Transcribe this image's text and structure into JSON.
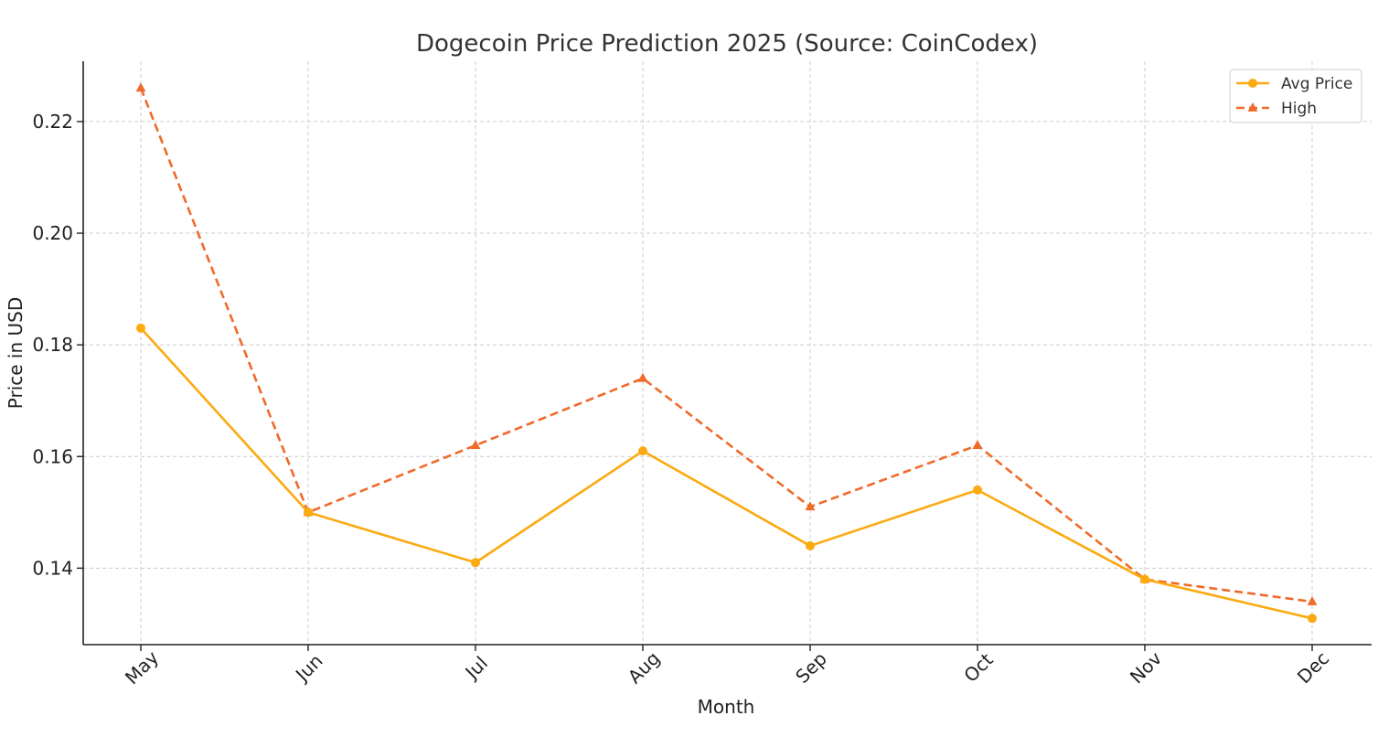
{
  "chart_data": {
    "type": "line",
    "title": "Dogecoin Price Prediction 2025 (Source: CoinCodex)",
    "xlabel": "Month",
    "ylabel": "Price in USD",
    "categories": [
      "May",
      "Jun",
      "Jul",
      "Aug",
      "Sep",
      "Oct",
      "Nov",
      "Dec"
    ],
    "ylim": [
      0.1263,
      0.2308
    ],
    "yticks": [
      0.14,
      0.16,
      0.18,
      0.2,
      0.22
    ],
    "ytick_labels": [
      "0.14",
      "0.16",
      "0.18",
      "0.20",
      "0.22"
    ],
    "grid": true,
    "legend_position": "top-right",
    "series": [
      {
        "name": "Avg Price",
        "values": [
          0.183,
          0.15,
          0.141,
          0.161,
          0.144,
          0.154,
          0.138,
          0.131
        ],
        "color": "#fbaa10",
        "line_style": "solid",
        "marker": "circle"
      },
      {
        "name": "High",
        "values": [
          0.226,
          0.15,
          0.162,
          0.174,
          0.151,
          0.162,
          0.138,
          0.134
        ],
        "color": "#f06a2a",
        "line_style": "dashed",
        "marker": "triangle"
      }
    ]
  }
}
